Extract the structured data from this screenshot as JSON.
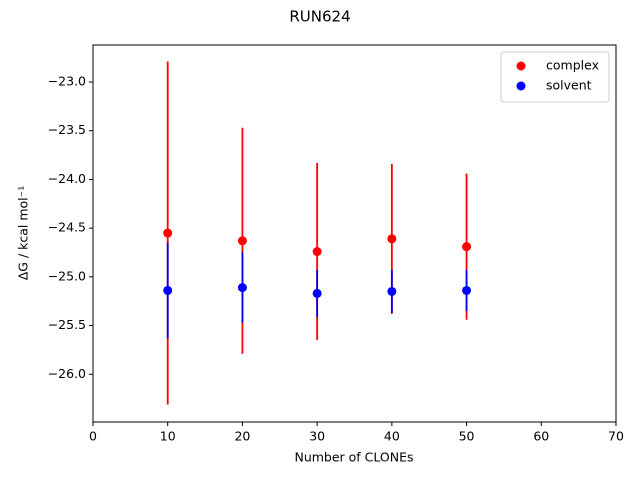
{
  "chart_data": {
    "type": "scatter",
    "title": "RUN624",
    "x_label": "Number of CLONEs",
    "y_label": "ΔG / kcal mol⁻¹",
    "x": [
      10,
      20,
      30,
      40,
      50
    ],
    "series": [
      {
        "name": "complex",
        "color": "#ff0000",
        "values": [
          -24.55,
          -24.63,
          -24.74,
          -24.61,
          -24.69
        ],
        "errors": [
          1.76,
          1.16,
          0.91,
          0.77,
          0.75
        ]
      },
      {
        "name": "solvent",
        "color": "#0000ff",
        "values": [
          -25.14,
          -25.11,
          -25.17,
          -25.15,
          -25.14
        ],
        "errors": [
          0.49,
          0.36,
          0.24,
          0.22,
          0.21
        ]
      }
    ],
    "xlim": [
      0,
      70
    ],
    "xticks": [
      0,
      10,
      20,
      30,
      40,
      50,
      60,
      70
    ],
    "ylim": [
      -26.49,
      -22.62
    ],
    "yticks": [
      {
        "value": -26.0,
        "label": "−26.0"
      },
      {
        "value": -25.5,
        "label": "−25.5"
      },
      {
        "value": -25.0,
        "label": "−25.0"
      },
      {
        "value": -24.5,
        "label": "−24.5"
      },
      {
        "value": -24.0,
        "label": "−24.0"
      },
      {
        "value": -23.5,
        "label": "−23.5"
      },
      {
        "value": -23.0,
        "label": "−23.0"
      }
    ],
    "legend": "upper right",
    "grid": false
  }
}
